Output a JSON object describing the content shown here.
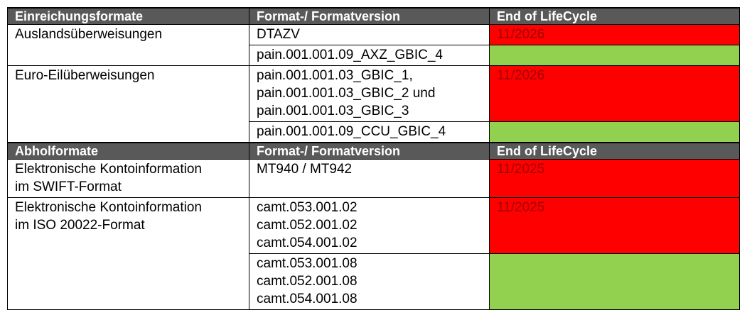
{
  "sections": [
    {
      "headers": [
        "Einreichungsformate",
        "Format-/ Formatversion",
        "End of LifeCycle"
      ],
      "groups": [
        {
          "label": [
            "Auslandsüberweisungen"
          ],
          "entries": [
            {
              "formats": [
                "DTAZV"
              ],
              "end_of_life": "11/2026",
              "color": "#ff0000"
            },
            {
              "formats": [
                "pain.001.001.09_AXZ_GBIC_4"
              ],
              "color": "#92d050"
            }
          ]
        },
        {
          "label": [
            "Euro-Eilüberweisungen"
          ],
          "entries": [
            {
              "formats": [
                "pain.001.001.03_GBIC_1,",
                "pain.001.001.03_GBIC_2 und",
                "pain.001.001.03_GBIC_3"
              ],
              "end_of_life": "11/2026",
              "color": "#ff0000"
            },
            {
              "formats": [
                "pain.001.001.09_CCU_GBIC_4"
              ],
              "color": "#92d050"
            }
          ]
        }
      ]
    },
    {
      "headers": [
        "Abholformate",
        "Format-/ Formatversion",
        "End of LifeCycle"
      ],
      "groups": [
        {
          "label": [
            "Elektronische Kontoinformation",
            "im SWIFT-Format"
          ],
          "entries": [
            {
              "formats": [
                "MT940 / MT942"
              ],
              "end_of_life": "11/2025",
              "color": "#ff0000"
            }
          ]
        },
        {
          "label": [
            "Elektronische Kontoinformation",
            "im ISO 20022-Format"
          ],
          "entries": [
            {
              "formats": [
                "camt.053.001.02",
                "camt.052.001.02",
                "camt.054.001.02"
              ],
              "end_of_life": "11/2025",
              "color": "#ff0000"
            },
            {
              "formats": [
                "camt.053.001.08",
                "camt.052.001.08",
                "camt.054.001.08"
              ],
              "color": "#92d050"
            }
          ]
        }
      ]
    }
  ]
}
